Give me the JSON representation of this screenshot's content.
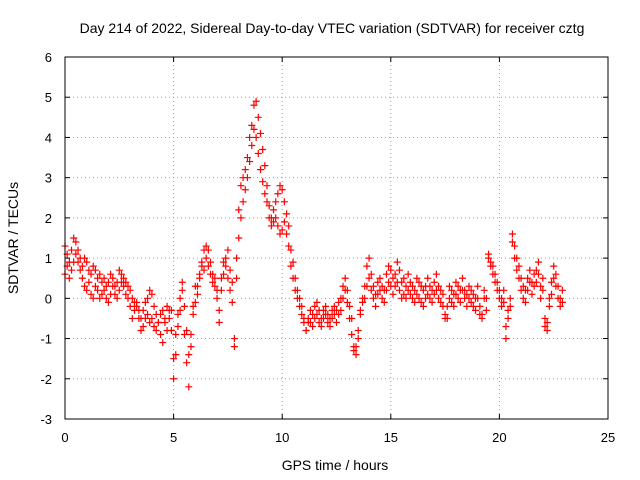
{
  "chart_data": {
    "type": "scatter",
    "title": "Day 214 of 2022, Sidereal Day-to-day VTEC variation (SDTVAR) for receiver cztg",
    "xlabel": "GPS time / hours",
    "ylabel": "SDTVAR / TECUs",
    "xlim": [
      0,
      25
    ],
    "ylim": [
      -3,
      6
    ],
    "xticks": [
      "0",
      "5",
      "10",
      "15",
      "20",
      "25"
    ],
    "yticks": [
      "-3",
      "-2",
      "-1",
      "0",
      "1",
      "2",
      "3",
      "4",
      "5",
      "6"
    ],
    "grid": true,
    "marker": "plus",
    "color": "#ff0000",
    "series": [
      {
        "name": "cztg",
        "x": [
          0.0,
          0.1,
          0.2,
          0.3,
          0.4,
          0.5,
          0.6,
          0.7,
          0.8,
          0.9,
          1.0,
          1.1,
          1.2,
          1.3,
          1.4,
          1.5,
          1.6,
          1.7,
          1.8,
          1.9,
          2.0,
          2.1,
          2.2,
          2.3,
          2.4,
          2.5,
          2.6,
          2.7,
          2.8,
          2.9,
          3.0,
          3.1,
          3.2,
          3.3,
          3.4,
          3.5,
          3.6,
          3.7,
          3.8,
          3.9,
          4.0,
          4.1,
          4.2,
          4.3,
          4.4,
          4.5,
          4.6,
          4.7,
          4.8,
          4.9,
          5.0,
          5.1,
          5.2,
          5.3,
          5.4,
          5.5,
          5.6,
          5.7,
          5.8,
          5.9,
          6.0,
          6.1,
          6.2,
          6.3,
          6.4,
          6.5,
          6.6,
          6.7,
          6.8,
          6.9,
          7.0,
          7.1,
          7.2,
          7.3,
          7.4,
          7.5,
          7.6,
          7.7,
          7.8,
          7.9,
          8.0,
          8.1,
          8.2,
          8.3,
          8.4,
          8.5,
          8.6,
          8.7,
          8.8,
          8.9,
          9.0,
          9.1,
          9.2,
          9.3,
          9.4,
          9.5,
          9.6,
          9.7,
          9.8,
          9.9,
          10.0,
          10.1,
          10.2,
          10.3,
          10.4,
          10.5,
          10.6,
          10.7,
          10.8,
          10.9,
          11.0,
          11.1,
          11.2,
          11.3,
          11.4,
          11.5,
          11.6,
          11.7,
          11.8,
          11.9,
          12.0,
          12.1,
          12.2,
          12.3,
          12.4,
          12.5,
          12.6,
          12.7,
          12.8,
          12.9,
          13.0,
          13.1,
          13.2,
          13.3,
          13.4,
          13.5,
          13.6,
          13.7,
          13.8,
          13.9,
          14.0,
          14.1,
          14.2,
          14.3,
          14.4,
          14.5,
          14.6,
          14.7,
          14.8,
          14.9,
          15.0,
          15.1,
          15.2,
          15.3,
          15.4,
          15.5,
          15.6,
          15.7,
          15.8,
          15.9,
          16.0,
          16.1,
          16.2,
          16.3,
          16.4,
          16.5,
          16.6,
          16.7,
          16.8,
          16.9,
          17.0,
          17.1,
          17.2,
          17.3,
          17.4,
          17.5,
          17.6,
          17.7,
          17.8,
          17.9,
          18.0,
          18.1,
          18.2,
          18.3,
          18.4,
          18.5,
          18.6,
          18.7,
          18.8,
          18.9,
          19.0,
          19.1,
          19.2,
          19.3,
          19.4,
          19.5,
          19.6,
          19.7,
          19.8,
          19.9,
          20.0,
          20.1,
          20.2,
          20.3,
          20.4,
          20.5,
          20.6,
          20.7,
          20.8,
          20.9,
          21.0,
          21.1,
          21.2,
          21.3,
          21.4,
          21.5,
          21.6,
          21.7,
          21.8,
          21.9,
          22.0,
          22.1,
          22.2,
          22.3,
          22.4,
          22.5,
          22.6,
          22.7,
          22.8,
          22.9
        ],
        "y_series": [
          [
            1.3,
            1.1,
            0.9,
            1.2,
            1.5,
            1.4,
            1.2,
            1.0,
            0.8,
            1.0,
            0.9,
            0.7,
            0.6,
            0.8,
            0.7,
            0.5,
            0.6,
            0.4,
            0.5,
            0.3,
            0.4,
            0.6,
            0.5,
            0.3,
            0.4,
            0.7,
            0.6,
            0.5,
            0.4,
            0.3,
            0.2,
            0.0,
            -0.1,
            -0.2,
            -0.5,
            -0.8,
            -0.3,
            -0.1,
            0.0,
            0.2,
            0.1,
            -0.2,
            -0.4,
            -0.6,
            -0.9,
            -1.1,
            -0.5,
            -0.2,
            -0.3,
            -0.8,
            -2.0,
            -1.4,
            -0.7,
            -0.3,
            0.2,
            -0.9,
            -1.6,
            -2.2,
            -1.2,
            -0.4,
            0.3,
            0.1,
            0.6,
            0.9,
            1.2,
            1.3,
            1.2,
            0.9,
            0.6,
            0.3,
            0.0,
            -0.6,
            0.2,
            0.6,
            1.0,
            1.2,
            0.7,
            0.4,
            -1.2,
            1.0,
            2.2,
            2.8,
            3.0,
            3.2,
            3.5,
            4.0,
            4.3,
            4.8,
            4.9,
            4.5,
            4.1,
            3.7,
            3.3,
            2.8,
            2.3,
            2.0,
            2.2,
            2.4,
            2.6,
            2.8,
            2.7,
            2.4,
            2.1,
            1.8,
            1.2,
            0.9,
            0.5,
            0.2,
            0.0,
            -0.2,
            -0.5,
            -0.8,
            -0.6,
            -0.3,
            -0.4,
            -0.2,
            -0.1,
            -0.3,
            -0.5,
            -0.3,
            -0.2,
            -0.4,
            -0.5,
            -0.3,
            -0.2,
            -0.3,
            -0.1,
            0.0,
            0.3,
            0.5,
            0.2,
            -0.2,
            -0.5,
            -1.2,
            -1.4,
            -1.0,
            -0.4,
            0.0,
            0.3,
            0.8,
            1.0,
            0.6,
            0.3,
            0.1,
            0.4,
            0.5,
            0.3,
            0.2,
            0.6,
            0.8,
            0.7,
            0.5,
            0.6,
            0.9,
            0.7,
            0.4,
            0.5,
            0.3,
            0.6,
            0.4,
            0.3,
            0.2,
            0.5,
            0.4,
            0.3,
            0.2,
            0.3,
            0.5,
            0.3,
            0.2,
            0.4,
            0.6,
            0.3,
            0.2,
            0.1,
            -0.4,
            -0.2,
            0.3,
            0.2,
            0.1,
            0.4,
            0.3,
            0.2,
            0.5,
            0.2,
            0.1,
            0.3,
            0.2,
            0.1,
            0.0,
            0.3,
            -0.2,
            -0.4,
            0.2,
            0.0,
            1.1,
            0.9,
            0.8,
            0.6,
            0.4,
            0.2,
            0.0,
            0.2,
            -1.0,
            -0.3,
            0.0,
            1.6,
            1.3,
            1.0,
            0.8,
            0.5,
            0.3,
            0.2,
            0.5,
            0.7,
            0.4,
            0.6,
            0.7,
            0.9,
            0.3,
            0.5,
            -0.5,
            -0.8,
            -0.2,
            0.4,
            0.8,
            0.6,
            0.3,
            0.0,
            0.2
          ],
          [
            0.6,
            0.8,
            0.5,
            0.7,
            0.9,
            1.1,
            0.9,
            0.7,
            0.5,
            0.3,
            0.2,
            0.4,
            0.1,
            0.0,
            0.3,
            0.2,
            0.0,
            0.1,
            0.2,
            0.0,
            -0.1,
            0.1,
            0.3,
            0.1,
            0.0,
            0.2,
            0.4,
            0.3,
            0.1,
            0.0,
            -0.2,
            -0.5,
            -0.3,
            -0.1,
            -0.3,
            -0.5,
            -0.7,
            -0.5,
            -0.4,
            -0.6,
            -0.5,
            -0.7,
            -0.8,
            -0.6,
            -0.4,
            -0.3,
            -0.6,
            -0.8,
            -0.5,
            -0.3,
            -1.5,
            -0.9,
            -0.4,
            0.0,
            0.4,
            -0.2,
            -0.8,
            -1.4,
            -0.9,
            -0.2,
            -0.1,
            0.3,
            0.5,
            0.8,
            0.7,
            1.0,
            0.8,
            0.6,
            0.4,
            0.5,
            0.2,
            -0.3,
            0.5,
            0.9,
            0.8,
            0.5,
            0.2,
            -0.1,
            -1.0,
            0.5,
            1.5,
            2.0,
            2.4,
            2.7,
            3.0,
            3.4,
            3.8,
            4.2,
            4.0,
            3.6,
            3.2,
            2.9,
            2.6,
            2.4,
            2.0,
            1.8,
            1.9,
            2.0,
            1.8,
            1.6,
            1.7,
            1.9,
            1.6,
            1.3,
            0.8,
            0.5,
            0.2,
            0.0,
            -0.2,
            -0.4,
            -0.6,
            -0.8,
            -0.5,
            -0.6,
            -0.7,
            -0.5,
            -0.4,
            -0.6,
            -0.7,
            -0.5,
            -0.4,
            -0.6,
            -0.7,
            -0.5,
            -0.4,
            -0.6,
            -0.4,
            -0.3,
            0.0,
            0.2,
            -0.1,
            -0.5,
            -0.9,
            -1.3,
            -1.2,
            -0.8,
            -0.3,
            -0.1,
            0.0,
            0.3,
            0.5,
            0.2,
            0.0,
            -0.2,
            0.1,
            0.2,
            0.0,
            -0.1,
            0.2,
            0.4,
            0.3,
            0.1,
            0.3,
            0.4,
            0.2,
            0.0,
            0.1,
            0.0,
            0.2,
            0.1,
            0.0,
            -0.1,
            0.1,
            0.0,
            -0.1,
            -0.2,
            0.0,
            0.1,
            0.0,
            -0.1,
            0.1,
            0.2,
            0.0,
            -0.1,
            -0.2,
            -0.5,
            -0.5,
            0.0,
            -0.1,
            -0.2,
            0.1,
            0.0,
            -0.1,
            0.2,
            0.0,
            -0.2,
            0.0,
            -0.1,
            -0.2,
            -0.3,
            0.0,
            -0.4,
            -0.5,
            0.0,
            -0.3,
            1.0,
            0.8,
            0.6,
            0.4,
            0.2,
            0.0,
            -0.2,
            -0.1,
            -0.7,
            -0.5,
            -0.2,
            1.4,
            1.0,
            0.7,
            0.5,
            0.2,
            0.0,
            -0.1,
            0.2,
            0.4,
            0.1,
            0.3,
            0.4,
            0.6,
            0.0,
            0.2,
            -0.7,
            -0.6,
            0.0,
            0.1,
            0.5,
            0.3,
            0.0,
            -0.2,
            -0.1
          ]
        ]
      }
    ]
  }
}
